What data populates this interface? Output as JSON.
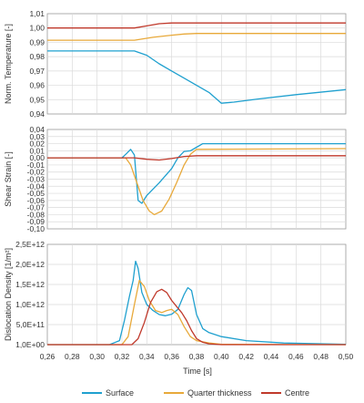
{
  "colors": {
    "surface": "#1FA0CF",
    "quarter": "#E8A93A",
    "centre": "#C0392B",
    "grid": "#DADADA",
    "panel_border": "#9A9A9A"
  },
  "chart_data": {
    "type": "line",
    "xlabel": "Time [s]",
    "x_ticks": [
      "0,26",
      "0,28",
      "0,30",
      "0,32",
      "0,34",
      "0,36",
      "0,38",
      "0,40",
      "0,42",
      "0,44",
      "0,46",
      "0,48",
      "0,50"
    ],
    "xlim": [
      0.26,
      0.5
    ],
    "legend": {
      "placement": "bottom",
      "entries": [
        "Surface",
        "Quarter thickness",
        "Centre"
      ]
    },
    "panels": [
      {
        "ylabel": "Norm. Temperature [-]",
        "ylim": [
          0.94,
          1.01
        ],
        "y_ticks": [
          "1,01",
          "1,00",
          "0,99",
          "0,98",
          "0,97",
          "0,96",
          "0,95",
          "0,94"
        ],
        "series": [
          {
            "name": "Surface",
            "x": [
              0.26,
              0.33,
              0.34,
              0.35,
              0.36,
              0.37,
              0.38,
              0.39,
              0.4,
              0.41,
              0.43,
              0.46,
              0.5
            ],
            "y": [
              0.984,
              0.984,
              0.981,
              0.975,
              0.97,
              0.965,
              0.96,
              0.955,
              0.9475,
              0.9483,
              0.9505,
              0.9535,
              0.957
            ]
          },
          {
            "name": "Quarter thickness",
            "x": [
              0.26,
              0.33,
              0.345,
              0.36,
              0.37,
              0.38,
              0.5
            ],
            "y": [
              0.9915,
              0.9915,
              0.9935,
              0.995,
              0.9958,
              0.9962,
              0.9962
            ]
          },
          {
            "name": "Centre",
            "x": [
              0.26,
              0.33,
              0.34,
              0.35,
              0.36,
              0.5
            ],
            "y": [
              1.0,
              1.0,
              1.0015,
              1.003,
              1.0035,
              1.0035
            ]
          }
        ]
      },
      {
        "ylabel": "Shear Strain [-]",
        "ylim": [
          -0.1,
          0.04
        ],
        "y_ticks": [
          "0,04",
          "0,03",
          "0,02",
          "0,01",
          "0,00",
          "-0,01",
          "-0,02",
          "-0,03",
          "-0,04",
          "-0,05",
          "-0,06",
          "-0,07",
          "-0,08",
          "-0,09",
          "-0,10"
        ],
        "series": [
          {
            "name": "Surface",
            "x": [
              0.26,
              0.32,
              0.323,
              0.327,
              0.33,
              0.333,
              0.336,
              0.34,
              0.35,
              0.36,
              0.365,
              0.37,
              0.375,
              0.38,
              0.385,
              0.5
            ],
            "y": [
              0.0,
              0.0,
              0.005,
              0.012,
              0.004,
              -0.06,
              -0.064,
              -0.053,
              -0.035,
              -0.015,
              0.0,
              0.009,
              0.01,
              0.015,
              0.02,
              0.02
            ]
          },
          {
            "name": "Quarter thickness",
            "x": [
              0.26,
              0.323,
              0.327,
              0.332,
              0.337,
              0.342,
              0.346,
              0.352,
              0.358,
              0.364,
              0.37,
              0.375,
              0.38,
              0.5
            ],
            "y": [
              0.0,
              0.0,
              -0.01,
              -0.035,
              -0.06,
              -0.075,
              -0.08,
              -0.075,
              -0.058,
              -0.035,
              -0.01,
              0.005,
              0.012,
              0.013
            ]
          },
          {
            "name": "Centre",
            "x": [
              0.26,
              0.33,
              0.34,
              0.35,
              0.36,
              0.37,
              0.38,
              0.5
            ],
            "y": [
              0.0,
              0.0,
              -0.002,
              -0.003,
              -0.001,
              0.002,
              0.003,
              0.003
            ]
          }
        ]
      },
      {
        "ylabel": "Dislocation Density [1/m²]",
        "ylim": [
          0,
          2500000000000.0
        ],
        "y_ticks": [
          "2,5E+12",
          "2,0E+12",
          "1,5E+12",
          "1,0E+12",
          "5,0E+11",
          "1,0E+00"
        ],
        "series": [
          {
            "name": "Surface",
            "x": [
              0.26,
              0.31,
              0.318,
              0.322,
              0.326,
              0.329,
              0.331,
              0.333,
              0.336,
              0.34,
              0.345,
              0.35,
              0.355,
              0.36,
              0.365,
              0.37,
              0.373,
              0.376,
              0.38,
              0.385,
              0.39,
              0.4,
              0.42,
              0.45,
              0.5
            ],
            "y": [
              0,
              0,
              100000000000.0,
              600000000000.0,
              1200000000000.0,
              1600000000000.0,
              2080000000000.0,
              1900000000000.0,
              1300000000000.0,
              1000000000000.0,
              850000000000.0,
              750000000000.0,
              720000000000.0,
              760000000000.0,
              880000000000.0,
              1250000000000.0,
              1420000000000.0,
              1350000000000.0,
              750000000000.0,
              400000000000.0,
              300000000000.0,
              200000000000.0,
              100000000000.0,
              40000000000.0,
              10000000000.0
            ]
          },
          {
            "name": "Quarter thickness",
            "x": [
              0.26,
              0.32,
              0.325,
              0.33,
              0.334,
              0.338,
              0.342,
              0.347,
              0.352,
              0.356,
              0.36,
              0.365,
              0.37,
              0.375,
              0.38,
              0.39,
              0.4,
              0.5
            ],
            "y": [
              0,
              0,
              200000000000.0,
              1000000000000.0,
              1600000000000.0,
              1450000000000.0,
              1100000000000.0,
              850000000000.0,
              800000000000.0,
              850000000000.0,
              880000000000.0,
              750000000000.0,
              450000000000.0,
              200000000000.0,
              100000000000.0,
              40000000000.0,
              10000000000.0,
              0
            ]
          },
          {
            "name": "Centre",
            "x": [
              0.26,
              0.328,
              0.333,
              0.338,
              0.343,
              0.348,
              0.352,
              0.356,
              0.36,
              0.364,
              0.368,
              0.372,
              0.376,
              0.38,
              0.385,
              0.39,
              0.4,
              0.5
            ],
            "y": [
              0,
              0,
              150000000000.0,
              550000000000.0,
              1050000000000.0,
              1320000000000.0,
              1380000000000.0,
              1300000000000.0,
              1100000000000.0,
              950000000000.0,
              800000000000.0,
              600000000000.0,
              350000000000.0,
              150000000000.0,
              60000000000.0,
              20000000000.0,
              0,
              0
            ]
          }
        ]
      }
    ]
  }
}
